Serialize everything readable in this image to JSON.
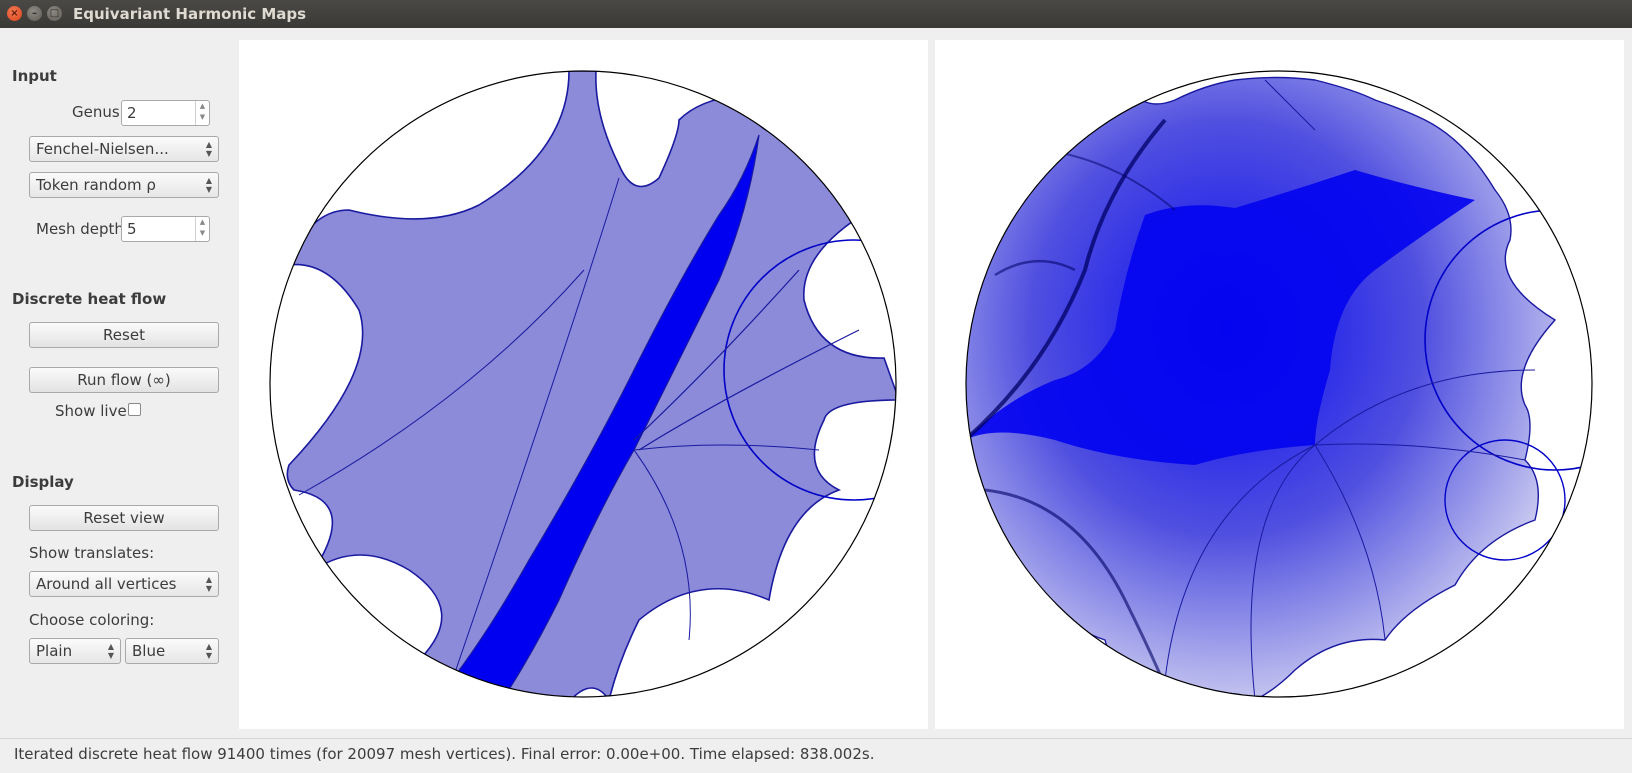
{
  "window": {
    "title": "Equivariant Harmonic Maps",
    "close_glyph": "×",
    "minimize_glyph": "–",
    "maximize_glyph": "□"
  },
  "input": {
    "heading": "Input",
    "genus_label": "Genus:",
    "genus_value": "2",
    "coords_select": "Fenchel-Nielsen...",
    "rho_select": "Token random ρ",
    "mesh_depth_label": "Mesh depth:",
    "mesh_depth_value": "5"
  },
  "heat_flow": {
    "heading": "Discrete heat flow",
    "reset_label": "Reset",
    "run_label": "Run flow (∞)",
    "show_live_label": "Show live",
    "show_live_checked": false
  },
  "display": {
    "heading": "Display",
    "reset_view_label": "Reset view",
    "translates_label": "Show translates:",
    "translates_select": "Around all vertices",
    "coloring_label": "Choose coloring:",
    "coloring_mode": "Plain",
    "coloring_color": "Blue"
  },
  "colors": {
    "fill_light": "#8b8bd9",
    "fill_dark": "#0000f0",
    "edge": "#1a1aa0"
  },
  "status": {
    "message": "Iterated discrete heat flow 91400 times (for 20097 mesh vertices). Final error: 0.00e+00. Time elapsed: 838.002s."
  }
}
